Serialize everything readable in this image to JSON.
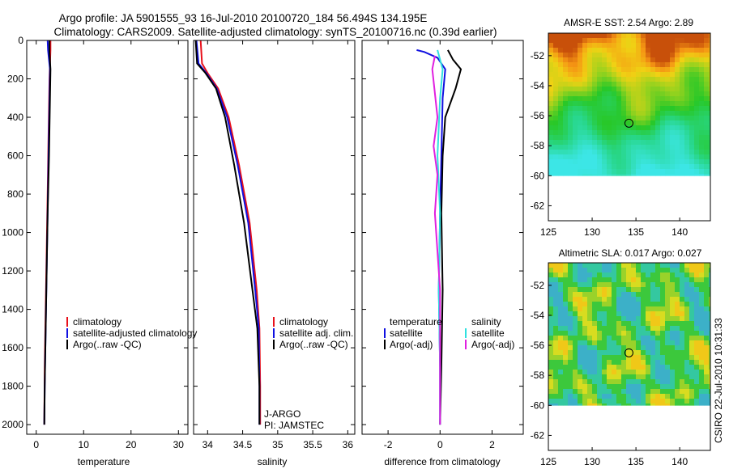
{
  "title_line1": "Argo profile: JA 5901555_93 16-Jul-2010 20100720_184 56.494S 134.195E",
  "title_line2": "Climatology: CARS2009. Satellite-adjusted climatology: synTS_20100716.nc (0.39d earlier)",
  "watermark": "CSIRO 22-Jul-2010 10:31:33",
  "colors": {
    "red": "#e8101a",
    "blue": "#1010e0",
    "black": "#000000",
    "cyan": "#30e0e0",
    "magenta": "#e020e0"
  },
  "chart_data": [
    {
      "type": "line",
      "xlabel": "temperature",
      "ylabel": "",
      "xlim": [
        -2,
        32
      ],
      "ylim": [
        2050,
        0
      ],
      "xticks": [
        "0",
        "10",
        "20",
        "30"
      ],
      "xtick_values": [
        0,
        10,
        20,
        30
      ],
      "yticks": [
        "0",
        "200",
        "400",
        "600",
        "800",
        "1000",
        "1200",
        "1400",
        "1600",
        "1800",
        "2000"
      ],
      "ytick_values": [
        0,
        200,
        400,
        600,
        800,
        1000,
        1200,
        1400,
        1600,
        1800,
        2000
      ],
      "legend": [
        "climatology",
        "satellite-adjusted climatology",
        "Argo(..raw -QC)"
      ],
      "series": [
        {
          "name": "climatology",
          "color": "red",
          "x": [
            3.0,
            3.0,
            2.8,
            2.6,
            2.4,
            2.2,
            2.0,
            1.8,
            1.7
          ],
          "y": [
            0,
            50,
            200,
            500,
            800,
            1100,
            1400,
            1700,
            2000
          ]
        },
        {
          "name": "satellite-adjusted climatology",
          "color": "blue",
          "x": [
            2.4,
            2.5,
            2.9,
            2.8,
            2.6,
            2.4,
            2.2,
            2.0,
            1.8,
            1.7
          ],
          "y": [
            0,
            50,
            150,
            300,
            600,
            900,
            1200,
            1500,
            1800,
            2000
          ]
        },
        {
          "name": "Argo(..raw -QC)",
          "color": "black",
          "x": [
            2.8,
            2.8,
            3.0,
            2.9,
            2.7,
            2.4,
            2.2,
            2.0,
            1.8,
            1.7
          ],
          "y": [
            0,
            60,
            150,
            300,
            600,
            900,
            1200,
            1500,
            1800,
            2000
          ]
        }
      ]
    },
    {
      "type": "line",
      "xlabel": "salinity",
      "ylabel": "",
      "xlim": [
        33.8,
        36.1
      ],
      "ylim": [
        2050,
        0
      ],
      "xticks": [
        "34",
        "34.5",
        "35",
        "35.5",
        "36"
      ],
      "xtick_values": [
        34,
        34.5,
        35,
        35.5,
        36
      ],
      "legend": [
        "climatology",
        "satellite adj. clim.",
        "Argo(..raw -QC)"
      ],
      "annotations": [
        "J-ARGO",
        "PI: JAMSTEC"
      ],
      "series": [
        {
          "name": "climatology",
          "color": "red",
          "x": [
            33.9,
            33.92,
            34.0,
            34.15,
            34.3,
            34.45,
            34.6,
            34.7,
            34.74,
            34.75,
            34.75
          ],
          "y": [
            0,
            120,
            170,
            250,
            400,
            650,
            950,
            1300,
            1500,
            1800,
            2000
          ]
        },
        {
          "name": "satellite adj. clim.",
          "color": "blue",
          "x": [
            33.84,
            33.87,
            33.98,
            34.13,
            34.28,
            34.43,
            34.58,
            34.68,
            34.73,
            34.74,
            34.74
          ],
          "y": [
            0,
            120,
            170,
            250,
            400,
            650,
            950,
            1300,
            1500,
            1800,
            2000
          ]
        },
        {
          "name": "Argo(..raw -QC)",
          "color": "black",
          "x": [
            33.83,
            33.85,
            33.97,
            34.12,
            34.25,
            34.38,
            34.52,
            34.64,
            34.71,
            34.74,
            34.74
          ],
          "y": [
            0,
            120,
            170,
            250,
            400,
            650,
            950,
            1300,
            1500,
            1800,
            2000
          ]
        }
      ]
    },
    {
      "type": "line",
      "xlabel": "difference from climatology",
      "ylabel": "",
      "xlim": [
        -3,
        3.2
      ],
      "ylim": [
        2050,
        0
      ],
      "xticks": [
        "-2",
        "0",
        "2"
      ],
      "xtick_values": [
        -2,
        0,
        2
      ],
      "legend_left_title": "temperature",
      "legend_right_title": "salinity",
      "legend_left": [
        "satellite",
        "Argo(-adj)"
      ],
      "legend_right": [
        "satellite",
        "Argo(-adj)"
      ],
      "series": [
        {
          "name": "temperature satellite",
          "color": "blue",
          "x": [
            -0.9,
            -0.6,
            -0.1,
            0.2,
            0.1,
            0.05,
            0.0,
            -0.05,
            0.0,
            0.0
          ],
          "y": [
            50,
            60,
            90,
            150,
            300,
            600,
            900,
            1300,
            1700,
            2000
          ]
        },
        {
          "name": "temperature Argo(-adj)",
          "color": "black",
          "x": [
            0.3,
            0.5,
            0.8,
            0.6,
            0.2,
            0.1,
            0.05,
            0.1,
            0.05,
            0.0
          ],
          "y": [
            50,
            100,
            150,
            250,
            400,
            600,
            900,
            1300,
            1700,
            2000
          ]
        },
        {
          "name": "salinity satellite",
          "color": "cyan",
          "x": [
            -0.1,
            0.1,
            0.0,
            -0.1,
            0.0,
            -0.05,
            0.0,
            0.0
          ],
          "y": [
            50,
            150,
            300,
            600,
            900,
            1300,
            1700,
            2000
          ]
        },
        {
          "name": "salinity Argo(-adj)",
          "color": "magenta",
          "x": [
            -0.2,
            -0.3,
            -0.1,
            -0.25,
            -0.1,
            -0.2,
            0.0,
            0.0
          ],
          "y": [
            80,
            150,
            400,
            550,
            700,
            900,
            1300,
            2000
          ]
        }
      ]
    },
    {
      "type": "heatmap",
      "title": "AMSR-E SST: 2.54 Argo: 2.89",
      "xlim": [
        125,
        143.5
      ],
      "ylim": [
        -63,
        -50.5
      ],
      "data_lat_range": [
        -60,
        -50.5
      ],
      "xticks": [
        "125",
        "130",
        "135",
        "140"
      ],
      "xtick_values": [
        125,
        130,
        135,
        140
      ],
      "yticks": [
        "-52",
        "-54",
        "-56",
        "-58",
        "-60",
        "-62"
      ],
      "ytick_values": [
        -52,
        -54,
        -56,
        -58,
        -60,
        -62
      ],
      "marker": {
        "lon": 134.2,
        "lat": -56.5
      }
    },
    {
      "type": "heatmap",
      "title": "Altimetric SLA: 0.017 Argo: 0.027",
      "xlim": [
        125,
        143.5
      ],
      "ylim": [
        -63,
        -50.5
      ],
      "data_lat_range": [
        -60,
        -50.5
      ],
      "xticks": [
        "125",
        "130",
        "135",
        "140"
      ],
      "xtick_values": [
        125,
        130,
        135,
        140
      ],
      "yticks": [
        "-52",
        "-54",
        "-56",
        "-58",
        "-60",
        "-62"
      ],
      "ytick_values": [
        -52,
        -54,
        -56,
        -58,
        -60,
        -62
      ],
      "marker": {
        "lon": 134.2,
        "lat": -56.5
      }
    }
  ]
}
